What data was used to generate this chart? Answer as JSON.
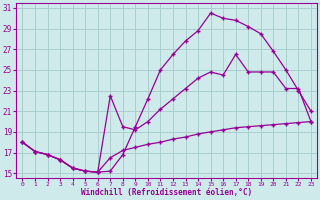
{
  "xlabel": "Windchill (Refroidissement éolien,°C)",
  "xlim_min": -0.5,
  "xlim_max": 23.5,
  "ylim_min": 14.5,
  "ylim_max": 31.5,
  "yticks": [
    15,
    17,
    19,
    21,
    23,
    25,
    27,
    29,
    31
  ],
  "xticks": [
    0,
    1,
    2,
    3,
    4,
    5,
    6,
    7,
    8,
    9,
    10,
    11,
    12,
    13,
    14,
    15,
    16,
    17,
    18,
    19,
    20,
    21,
    22,
    23
  ],
  "bg_color": "#ceeaea",
  "grid_color": "#aacece",
  "line_color": "#990099",
  "line1_x": [
    0,
    1,
    2,
    3,
    4,
    5,
    6,
    7,
    8,
    9,
    10,
    11,
    12,
    13,
    14,
    15,
    16,
    17,
    18,
    19,
    20,
    21,
    22,
    23
  ],
  "line1_y": [
    18.0,
    17.1,
    16.8,
    16.3,
    15.5,
    15.2,
    15.1,
    15.2,
    16.8,
    19.5,
    22.2,
    25.0,
    26.5,
    27.8,
    28.8,
    30.5,
    30.0,
    29.8,
    29.2,
    28.5,
    26.8,
    25.0,
    23.0,
    21.0
  ],
  "line2_x": [
    0,
    1,
    2,
    3,
    4,
    5,
    6,
    7,
    8,
    9,
    10,
    11,
    12,
    13,
    14,
    15,
    16,
    17,
    18,
    19,
    20,
    21,
    22,
    23
  ],
  "line2_y": [
    18.0,
    17.1,
    16.8,
    16.3,
    15.5,
    15.2,
    15.1,
    22.5,
    19.5,
    19.2,
    20.0,
    21.2,
    22.2,
    23.2,
    24.2,
    24.8,
    24.5,
    26.5,
    24.8,
    24.8,
    24.8,
    23.2,
    23.2,
    20.0
  ],
  "line3_x": [
    0,
    1,
    2,
    3,
    4,
    5,
    6,
    7,
    8,
    9,
    10,
    11,
    12,
    13,
    14,
    15,
    16,
    17,
    18,
    19,
    20,
    21,
    22,
    23
  ],
  "line3_y": [
    18.0,
    17.1,
    16.8,
    16.3,
    15.5,
    15.2,
    15.1,
    16.5,
    17.2,
    17.5,
    17.8,
    18.0,
    18.3,
    18.5,
    18.8,
    19.0,
    19.2,
    19.4,
    19.5,
    19.6,
    19.7,
    19.8,
    19.9,
    20.0
  ]
}
